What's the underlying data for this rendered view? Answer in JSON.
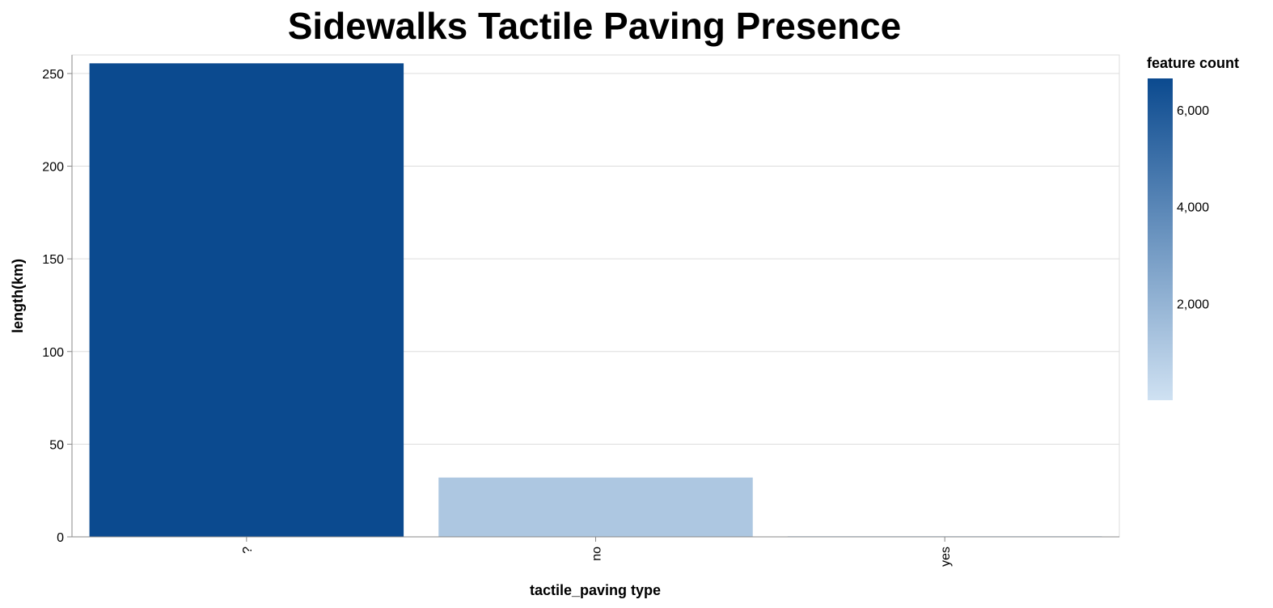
{
  "chart_data": {
    "type": "bar",
    "title": "Sidewalks Tactile Paving Presence",
    "xlabel": "tactile_paving type",
    "ylabel": "length(km)",
    "categories": [
      "?",
      "no",
      "yes"
    ],
    "values": [
      255.5,
      32,
      0.4
    ],
    "feature_counts": [
      6650,
      1150,
      10
    ],
    "ylim": [
      0,
      260
    ],
    "yticks": [
      0,
      50,
      100,
      150,
      200,
      250
    ],
    "grid": true,
    "legend": {
      "title": "feature count",
      "type": "gradient",
      "placement": "right",
      "range": [
        0,
        6650
      ],
      "ticks": [
        2000,
        4000,
        6000
      ],
      "tick_labels": [
        "2,000",
        "4,000",
        "6,000"
      ],
      "color_low": "#cfe1f2",
      "color_high": "#0b4a8f"
    }
  }
}
